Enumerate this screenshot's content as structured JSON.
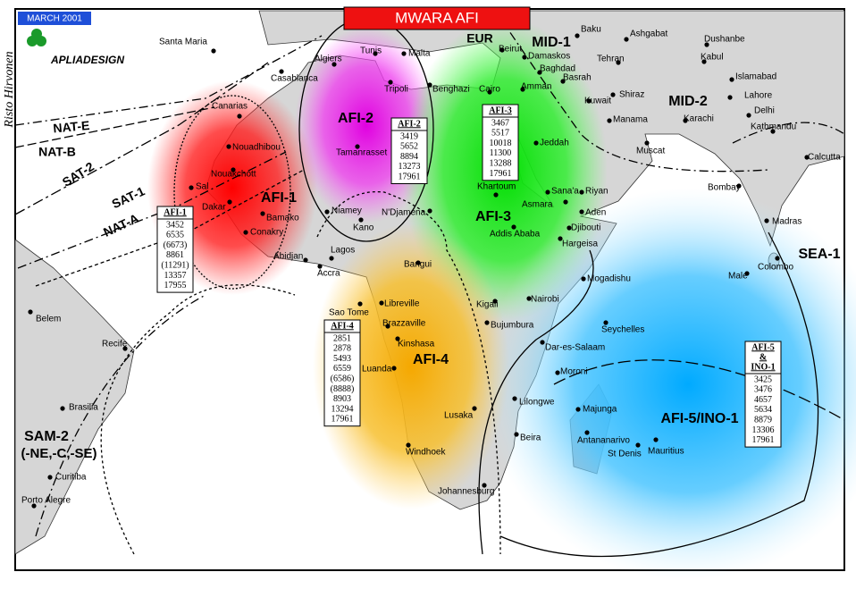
{
  "header": {
    "date": "MARCH 2001",
    "title": "MWARA AFI"
  },
  "logo": "APLIADESIGN",
  "author": "Risto Hirvonen",
  "regions": [
    "NAT-E",
    "NAT-B",
    "SAT-2",
    "SAT-1",
    "NAT-A",
    "AFI-1",
    "AFI-2",
    "AFI-3",
    "AFI-4",
    "AFI-5/INO-1",
    "MID-1",
    "MID-2",
    "SEA-1",
    "EUR",
    "SAM-2",
    "(-NE,-C,-SE)"
  ],
  "cities": [
    "Santa Maria",
    "Algiers",
    "Tunis",
    "Malta",
    "Beirut",
    "Baku",
    "Ashgabat",
    "Dushanbe",
    "Tehran",
    "Kabul",
    "Damaskos",
    "Baghdad",
    "Islamabad",
    "Basrah",
    "Amman",
    "Casablanca",
    "Tripoli",
    "Benghazi",
    "Cairo",
    "Shiraz",
    "Lahore",
    "Kuwait",
    "Delhi",
    "Canarias",
    "Manama",
    "Karachi",
    "Kathmandu",
    "Jeddah",
    "Nouadhibou",
    "Tamanrasset",
    "Muscat",
    "Calcutta",
    "Nouakchott",
    "Sal",
    "Khartoum",
    "Sana'a",
    "Riyan",
    "Bombay",
    "Dakar",
    "Aden",
    "Niamey",
    "N'Djamena",
    "Asmara",
    "Bamako",
    "Djibouti",
    "Madras",
    "Kano",
    "Addis Ababa",
    "Conakry",
    "Hargeisa",
    "Abidjan",
    "Lagos",
    "Accra",
    "Bangui",
    "Colombo",
    "Mogadishu",
    "Male",
    "Nairobi",
    "Libreville",
    "Sao Tome",
    "Kigali",
    "Bujumbura",
    "Belem",
    "Brazzaville",
    "Seychelles",
    "Kinshasa",
    "Dar-es-Salaam",
    "Recife",
    "Luanda",
    "Moroni",
    "Lilongwe",
    "Brasilia",
    "Majunga",
    "Lusaka",
    "Beira",
    "Antananarivo",
    "Mauritius",
    "St Denis",
    "Windhoek",
    "Curitiba",
    "Johannesburg",
    "Porto Alegre"
  ],
  "frequency_boxes": [
    {
      "title": [
        "AFI-1"
      ],
      "frequencies": [
        "3452",
        "6535",
        "(6673)",
        "8861",
        "(11291)",
        "13357",
        "17955"
      ]
    },
    {
      "title": [
        "AFI-2"
      ],
      "frequencies": [
        "3419",
        "5652",
        "8894",
        "13273",
        "17961"
      ]
    },
    {
      "title": [
        "AFI-3"
      ],
      "frequencies": [
        "3467",
        "5517",
        "10018",
        "11300",
        "13288",
        "17961"
      ]
    },
    {
      "title": [
        "AFI-4"
      ],
      "frequencies": [
        "2851",
        "2878",
        "5493",
        "6559",
        "(6586)",
        "(8888)",
        "8903",
        "13294",
        "17961"
      ]
    },
    {
      "title": [
        "AFI-5",
        "&",
        "INO-1"
      ],
      "frequencies": [
        "3425",
        "3476",
        "4657",
        "5634",
        "8879",
        "13306",
        "17961"
      ]
    }
  ]
}
